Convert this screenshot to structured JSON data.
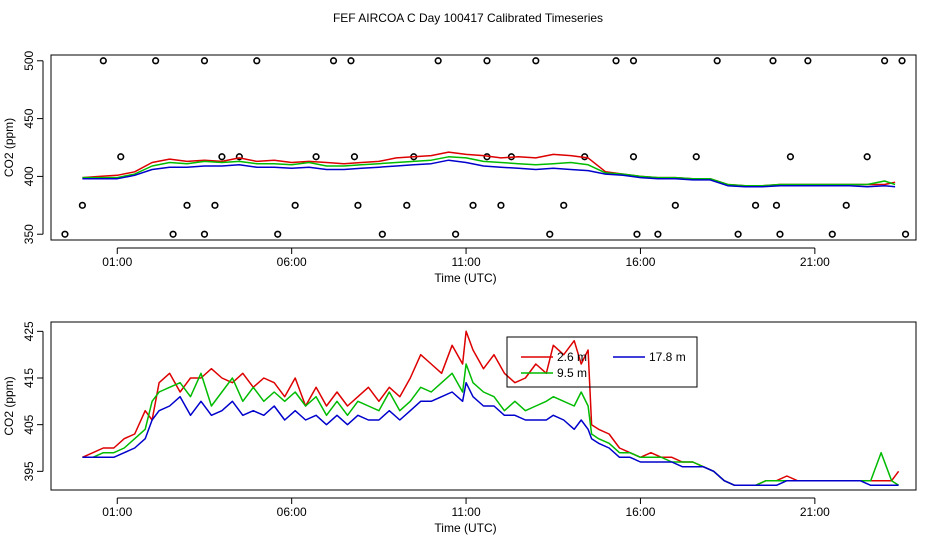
{
  "title": "FEF AIRCOA C  Day 100417  Calibrated Timeseries",
  "colors": {
    "s1": "#dd0000",
    "s2": "#00bb00",
    "s3": "#0000cc",
    "axis": "#000000"
  },
  "chart_data": [
    {
      "type": "line",
      "title": "",
      "xlabel": "Time (UTC)",
      "ylabel": "CO2 (ppm)",
      "xlim": [
        -0.9,
        23.9
      ],
      "ylim": [
        345,
        505
      ],
      "xticks": [
        1,
        6,
        11,
        16,
        21
      ],
      "xtick_labels": [
        "01:00",
        "06:00",
        "11:00",
        "16:00",
        "21:00"
      ],
      "yticks": [
        350,
        400,
        450,
        500
      ],
      "ytick_labels": [
        "350",
        "400",
        "450",
        "500"
      ],
      "series": [
        {
          "name": "2.6 m",
          "color": "#dd0000",
          "x": [
            0,
            0.5,
            1.0,
            1.5,
            2,
            2.5,
            3,
            3.5,
            4,
            4.5,
            5,
            5.5,
            6,
            6.5,
            7,
            7.5,
            8,
            8.5,
            9,
            9.5,
            10,
            10.5,
            11,
            11.5,
            12,
            12.5,
            13,
            13.5,
            14,
            14.5,
            15,
            15.5,
            16,
            16.5,
            17,
            17.5,
            18,
            18.5,
            19,
            19.5,
            20,
            20.5,
            21,
            21.5,
            22,
            22.5,
            23,
            23.3
          ],
          "y": [
            399,
            400,
            401,
            404,
            412,
            415,
            413,
            414,
            413,
            416,
            413,
            414,
            412,
            413,
            412,
            411,
            412,
            413,
            416,
            417,
            418,
            421,
            419,
            418,
            416,
            417,
            416,
            419,
            418,
            416,
            404,
            402,
            400,
            399,
            399,
            398,
            398,
            393,
            392,
            392,
            393,
            393,
            393,
            393,
            393,
            393,
            393,
            395
          ]
        },
        {
          "name": "9.5 m",
          "color": "#00bb00",
          "x": [
            0,
            0.5,
            1.0,
            1.5,
            2,
            2.5,
            3,
            3.5,
            4,
            4.5,
            5,
            5.5,
            6,
            6.5,
            7,
            7.5,
            8,
            8.5,
            9,
            9.5,
            10,
            10.5,
            11,
            11.5,
            12,
            12.5,
            13,
            13.5,
            14,
            14.5,
            15,
            15.5,
            16,
            16.5,
            17,
            17.5,
            18,
            18.5,
            19,
            19.5,
            20,
            20.5,
            21,
            21.5,
            22,
            22.5,
            23,
            23.3
          ],
          "y": [
            399,
            399,
            399,
            402,
            409,
            412,
            411,
            413,
            412,
            413,
            411,
            411,
            410,
            412,
            409,
            409,
            410,
            411,
            412,
            413,
            414,
            417,
            416,
            413,
            412,
            411,
            410,
            411,
            412,
            410,
            403,
            402,
            400,
            399,
            399,
            398,
            398,
            393,
            392,
            392,
            393,
            393,
            393,
            393,
            393,
            393,
            396,
            393
          ]
        },
        {
          "name": "17.8 m",
          "color": "#0000cc",
          "x": [
            0,
            0.5,
            1.0,
            1.5,
            2,
            2.5,
            3,
            3.5,
            4,
            4.5,
            5,
            5.5,
            6,
            6.5,
            7,
            7.5,
            8,
            8.5,
            9,
            9.5,
            10,
            10.5,
            11,
            11.5,
            12,
            12.5,
            13,
            13.5,
            14,
            14.5,
            15,
            15.5,
            16,
            16.5,
            17,
            17.5,
            18,
            18.5,
            19,
            19.5,
            20,
            20.5,
            21,
            21.5,
            22,
            22.5,
            23,
            23.3
          ],
          "y": [
            398,
            398,
            398,
            401,
            406,
            408,
            408,
            409,
            409,
            410,
            408,
            408,
            407,
            408,
            406,
            406,
            407,
            408,
            409,
            410,
            411,
            414,
            412,
            409,
            408,
            407,
            406,
            407,
            406,
            405,
            402,
            401,
            399,
            398,
            398,
            397,
            397,
            392,
            391,
            391,
            392,
            392,
            392,
            392,
            392,
            391,
            392,
            391
          ]
        }
      ],
      "cal_points": {
        "x": [
          -0.5,
          0,
          0.6,
          1.1,
          2.1,
          2.6,
          3.0,
          3.5,
          3.8,
          3.5,
          4.0,
          4.5,
          5.0,
          5.6,
          6.1,
          6.7,
          7.2,
          7.7,
          7.8,
          7.9,
          8.6,
          9.3,
          9.5,
          10.2,
          10.7,
          11.2,
          11.6,
          11.6,
          12.0,
          12.3,
          13.0,
          13.4,
          13.8,
          14.4,
          15.3,
          15.8,
          15.8,
          15.9,
          16.5,
          17.0,
          17.6,
          18.2,
          18.8,
          19.3,
          19.8,
          19.9,
          20.0,
          20.3,
          20.8,
          21.5,
          21.9,
          22.5,
          23.0,
          23.5,
          23.6
        ],
        "y": [
          350,
          375,
          500,
          417,
          500,
          350,
          375,
          350,
          375,
          500,
          417,
          417,
          500,
          350,
          375,
          417,
          500,
          500,
          417,
          375,
          350,
          375,
          417,
          500,
          350,
          375,
          500,
          417,
          375,
          417,
          500,
          350,
          375,
          417,
          500,
          500,
          417,
          350,
          350,
          375,
          417,
          500,
          350,
          375,
          500,
          375,
          350,
          417,
          500,
          350,
          375,
          417,
          500,
          500,
          350
        ]
      }
    },
    {
      "type": "line",
      "title": "",
      "xlabel": "Time (UTC)",
      "ylabel": "CO2 (ppm)",
      "xlim": [
        -0.9,
        23.9
      ],
      "ylim": [
        391,
        427
      ],
      "xticks": [
        1,
        6,
        11,
        16,
        21
      ],
      "xtick_labels": [
        "01:00",
        "06:00",
        "11:00",
        "16:00",
        "21:00"
      ],
      "yticks": [
        395,
        405,
        415,
        425
      ],
      "ytick_labels": [
        "395",
        "405",
        "415",
        "425"
      ],
      "legend": {
        "position": "top-center",
        "entries": [
          "2.6 m",
          "9.5 m",
          "17.8 m"
        ]
      },
      "series": [
        {
          "name": "2.6 m",
          "color": "#dd0000",
          "x": [
            0,
            0.3,
            0.6,
            0.9,
            1.2,
            1.5,
            1.8,
            2.0,
            2.2,
            2.5,
            2.8,
            3.1,
            3.4,
            3.7,
            4.0,
            4.3,
            4.6,
            4.9,
            5.2,
            5.5,
            5.8,
            6.1,
            6.4,
            6.7,
            7.0,
            7.3,
            7.6,
            7.9,
            8.2,
            8.5,
            8.8,
            9.1,
            9.4,
            9.7,
            10.0,
            10.3,
            10.6,
            10.9,
            11.0,
            11.2,
            11.5,
            11.8,
            12.1,
            12.4,
            12.7,
            13.0,
            13.3,
            13.5,
            13.8,
            14.1,
            14.3,
            14.5,
            14.6,
            14.8,
            15.1,
            15.4,
            15.7,
            16.0,
            16.3,
            16.6,
            16.9,
            17.2,
            17.5,
            17.8,
            18.1,
            18.4,
            18.7,
            19.0,
            19.3,
            19.6,
            19.9,
            20.2,
            20.5,
            20.8,
            21.1,
            21.4,
            21.7,
            22.0,
            22.3,
            22.6,
            22.9,
            23.2,
            23.4
          ],
          "y": [
            398,
            399,
            400,
            400,
            402,
            403,
            408,
            406,
            414,
            416,
            412,
            415,
            415,
            417,
            415,
            414,
            416,
            413,
            415,
            414,
            411,
            415,
            409,
            413,
            409,
            412,
            409,
            411,
            413,
            410,
            413,
            411,
            415,
            420,
            418,
            416,
            422,
            418,
            425,
            421,
            417,
            420,
            416,
            414,
            415,
            418,
            416,
            422,
            420,
            423,
            418,
            421,
            405,
            404,
            403,
            400,
            399,
            398,
            399,
            398,
            398,
            397,
            397,
            396,
            395,
            393,
            392,
            392,
            392,
            393,
            393,
            394,
            393,
            393,
            393,
            393,
            393,
            393,
            393,
            393,
            393,
            393,
            395
          ]
        },
        {
          "name": "9.5 m",
          "color": "#00bb00",
          "x": [
            0,
            0.3,
            0.6,
            0.9,
            1.2,
            1.5,
            1.8,
            2.0,
            2.2,
            2.5,
            2.8,
            3.1,
            3.4,
            3.7,
            4.0,
            4.3,
            4.6,
            4.9,
            5.2,
            5.5,
            5.8,
            6.1,
            6.4,
            6.7,
            7.0,
            7.3,
            7.6,
            7.9,
            8.2,
            8.5,
            8.8,
            9.1,
            9.4,
            9.7,
            10.0,
            10.3,
            10.6,
            10.9,
            11.0,
            11.2,
            11.5,
            11.8,
            12.1,
            12.4,
            12.7,
            13.0,
            13.3,
            13.5,
            13.8,
            14.1,
            14.3,
            14.5,
            14.6,
            14.8,
            15.1,
            15.4,
            15.7,
            16.0,
            16.3,
            16.6,
            16.9,
            17.2,
            17.5,
            17.8,
            18.1,
            18.4,
            18.7,
            19.0,
            19.3,
            19.6,
            19.9,
            20.2,
            20.5,
            20.8,
            21.1,
            21.4,
            21.7,
            22.0,
            22.3,
            22.6,
            22.9,
            23.2,
            23.4
          ],
          "y": [
            398,
            398,
            399,
            399,
            400,
            402,
            404,
            410,
            412,
            413,
            414,
            411,
            416,
            409,
            412,
            415,
            410,
            413,
            410,
            412,
            410,
            412,
            409,
            411,
            407,
            410,
            407,
            410,
            409,
            408,
            412,
            408,
            410,
            413,
            412,
            414,
            416,
            412,
            418,
            414,
            412,
            411,
            408,
            410,
            408,
            409,
            410,
            411,
            410,
            409,
            412,
            409,
            403,
            402,
            401,
            399,
            399,
            398,
            398,
            398,
            397,
            397,
            397,
            396,
            395,
            393,
            392,
            392,
            392,
            393,
            393,
            393,
            393,
            393,
            393,
            393,
            393,
            393,
            393,
            393,
            399,
            393,
            392
          ]
        },
        {
          "name": "17.8 m",
          "color": "#0000cc",
          "x": [
            0,
            0.3,
            0.6,
            0.9,
            1.2,
            1.5,
            1.8,
            2.0,
            2.2,
            2.5,
            2.8,
            3.1,
            3.4,
            3.7,
            4.0,
            4.3,
            4.6,
            4.9,
            5.2,
            5.5,
            5.8,
            6.1,
            6.4,
            6.7,
            7.0,
            7.3,
            7.6,
            7.9,
            8.2,
            8.5,
            8.8,
            9.1,
            9.4,
            9.7,
            10.0,
            10.3,
            10.6,
            10.9,
            11.0,
            11.2,
            11.5,
            11.8,
            12.1,
            12.4,
            12.7,
            13.0,
            13.3,
            13.5,
            13.8,
            14.1,
            14.3,
            14.5,
            14.6,
            14.8,
            15.1,
            15.4,
            15.7,
            16.0,
            16.3,
            16.6,
            16.9,
            17.2,
            17.5,
            17.8,
            18.1,
            18.4,
            18.7,
            19.0,
            19.3,
            19.6,
            19.9,
            20.2,
            20.5,
            20.8,
            21.1,
            21.4,
            21.7,
            22.0,
            22.3,
            22.6,
            22.9,
            23.2,
            23.4
          ],
          "y": [
            398,
            398,
            398,
            398,
            399,
            400,
            402,
            406,
            408,
            409,
            411,
            407,
            410,
            407,
            408,
            410,
            407,
            408,
            407,
            409,
            406,
            408,
            406,
            407,
            405,
            407,
            405,
            407,
            406,
            406,
            408,
            406,
            408,
            410,
            410,
            411,
            412,
            410,
            414,
            411,
            409,
            409,
            407,
            407,
            406,
            406,
            406,
            407,
            406,
            404,
            406,
            404,
            402,
            401,
            400,
            398,
            398,
            397,
            397,
            397,
            397,
            396,
            396,
            396,
            395,
            393,
            392,
            392,
            392,
            392,
            392,
            393,
            393,
            393,
            393,
            393,
            393,
            393,
            393,
            392,
            392,
            392,
            392
          ]
        }
      ]
    }
  ]
}
